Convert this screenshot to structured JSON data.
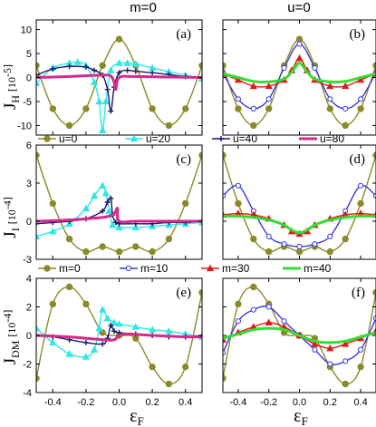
{
  "column_titles": [
    "m=0",
    "u=0"
  ],
  "x_label": {
    "main": "ε",
    "sub": "F"
  },
  "row_labels": [
    {
      "main": "J",
      "sub": "H",
      "unit": "[10"
    },
    {
      "main": "J",
      "sub": "I",
      "unit": "[10"
    },
    {
      "main": "J",
      "sub": "DM",
      "unit": "[10"
    }
  ],
  "unit_exponents": [
    "-5]",
    "-4]",
    "-4]"
  ],
  "legends": {
    "u": {
      "entries": [
        "u=0",
        "u=20",
        "u=40",
        "u=80"
      ]
    },
    "m": {
      "entries": [
        "m=0",
        "m=10",
        "m=30",
        "m=40"
      ]
    }
  },
  "chart_data": [
    {
      "type": "line",
      "panel": "(a)",
      "xlim": [
        -0.5,
        0.5
      ],
      "ylim": [
        -12,
        12
      ],
      "yticks": [
        -10,
        -5,
        0,
        5,
        10
      ],
      "xticks": [
        -0.4,
        -0.2,
        0.0,
        0.2,
        0.4
      ],
      "series": [
        {
          "name": "u=0",
          "color": "#8b8a2a",
          "marker": "circle",
          "x": [
            -0.5,
            -0.4,
            -0.3,
            -0.2,
            -0.1,
            0.0,
            0.1,
            0.2,
            0.3,
            0.4,
            0.5
          ],
          "y": [
            2.5,
            -6.5,
            -10.0,
            -6.5,
            2.5,
            8.0,
            2.5,
            -6.5,
            -10.0,
            -6.5,
            2.5
          ]
        },
        {
          "name": "u=20",
          "color": "#2ee6e6",
          "marker": "triangle",
          "x": [
            -0.5,
            -0.4,
            -0.3,
            -0.25,
            -0.2,
            -0.15,
            -0.12,
            -0.1,
            -0.08,
            -0.05,
            0.0,
            0.05,
            0.1,
            0.2,
            0.3,
            0.4,
            0.5
          ],
          "y": [
            -1.2,
            2.0,
            3.0,
            3.2,
            2.5,
            -1.0,
            -5.0,
            -11.0,
            -5.0,
            1.5,
            3.0,
            3.0,
            2.8,
            2.0,
            1.2,
            0.5,
            -0.2
          ]
        },
        {
          "name": "u=40",
          "color": "#1a1a6e",
          "marker": "plus",
          "x": [
            -0.5,
            -0.4,
            -0.3,
            -0.2,
            -0.15,
            -0.1,
            -0.07,
            -0.05,
            -0.03,
            0.0,
            0.05,
            0.1,
            0.2,
            0.3,
            0.4,
            0.5
          ],
          "y": [
            0.5,
            1.8,
            2.3,
            2.2,
            1.5,
            0.5,
            -2.5,
            -7.0,
            -2.0,
            1.0,
            1.5,
            1.3,
            1.0,
            0.6,
            0.2,
            0.0
          ]
        },
        {
          "name": "u=80",
          "color": "#d42a8a",
          "marker": "none",
          "x": [
            -0.5,
            -0.3,
            -0.1,
            -0.05,
            -0.03,
            -0.02,
            0.0,
            0.1,
            0.3,
            0.5
          ],
          "y": [
            0.0,
            0.2,
            0.5,
            0.3,
            -1.0,
            -2.5,
            0.0,
            0.2,
            0.1,
            0.0
          ]
        }
      ]
    },
    {
      "type": "line",
      "panel": "(b)",
      "xlim": [
        -0.5,
        0.5
      ],
      "ylim": [
        -12,
        12
      ],
      "xticks": [
        -0.4,
        -0.2,
        0.0,
        0.2,
        0.4
      ],
      "series": [
        {
          "name": "m=0",
          "color": "#8b8a2a",
          "marker": "circle",
          "x": [
            -0.5,
            -0.4,
            -0.3,
            -0.2,
            -0.1,
            0.0,
            0.1,
            0.2,
            0.3,
            0.4,
            0.5
          ],
          "y": [
            2.5,
            -6.5,
            -10.0,
            -6.5,
            2.5,
            8.0,
            2.5,
            -6.5,
            -10.0,
            -6.5,
            2.5
          ]
        },
        {
          "name": "m=10",
          "color": "#3a3ae0",
          "marker": "open-circle",
          "x": [
            -0.5,
            -0.4,
            -0.3,
            -0.2,
            -0.1,
            0.0,
            0.1,
            0.2,
            0.3,
            0.4,
            0.5
          ],
          "y": [
            1.0,
            -4.5,
            -6.5,
            -4.5,
            2.0,
            7.0,
            2.0,
            -4.5,
            -6.5,
            -4.5,
            1.0
          ]
        },
        {
          "name": "m=30",
          "color": "#e01a1a",
          "marker": "triangle",
          "x": [
            -0.5,
            -0.4,
            -0.3,
            -0.2,
            -0.1,
            -0.05,
            0.0,
            0.05,
            0.1,
            0.2,
            0.3,
            0.4,
            0.5
          ],
          "y": [
            0.8,
            -0.5,
            -1.8,
            -1.8,
            -0.5,
            1.5,
            4.0,
            1.5,
            -0.5,
            -1.8,
            -1.8,
            -0.5,
            0.8
          ]
        },
        {
          "name": "m=40",
          "color": "#33dd33",
          "marker": "none",
          "x": [
            -0.5,
            -0.4,
            -0.3,
            -0.2,
            -0.1,
            -0.05,
            0.0,
            0.05,
            0.1,
            0.2,
            0.3,
            0.4,
            0.5
          ],
          "y": [
            0.8,
            0.0,
            -0.8,
            -0.9,
            -0.3,
            1.2,
            3.0,
            1.2,
            -0.3,
            -0.9,
            -0.8,
            0.0,
            0.8
          ]
        }
      ]
    },
    {
      "type": "line",
      "panel": "(c)",
      "xlim": [
        -0.5,
        0.5
      ],
      "ylim": [
        -3,
        6
      ],
      "yticks": [
        -3,
        0,
        3,
        6
      ],
      "xticks": [
        -0.4,
        -0.2,
        0.0,
        0.2,
        0.4
      ],
      "series": [
        {
          "name": "u=0",
          "color": "#8b8a2a",
          "marker": "circle",
          "x": [
            -0.5,
            -0.4,
            -0.3,
            -0.2,
            -0.1,
            0.0,
            0.1,
            0.2,
            0.3,
            0.4,
            0.5
          ],
          "y": [
            5.2,
            1.4,
            -1.4,
            -2.4,
            -2.0,
            -2.4,
            -2.0,
            -2.4,
            -1.4,
            1.4,
            5.2
          ]
        },
        {
          "name": "u=20",
          "color": "#2ee6e6",
          "marker": "triangle",
          "x": [
            -0.5,
            -0.4,
            -0.3,
            -0.2,
            -0.15,
            -0.1,
            -0.08,
            -0.06,
            -0.04,
            0.0,
            0.1,
            0.2,
            0.3,
            0.4,
            0.5
          ],
          "y": [
            -1.2,
            -0.8,
            -0.2,
            1.0,
            2.0,
            2.8,
            2.2,
            0.8,
            -0.3,
            -0.5,
            -0.5,
            -0.4,
            -0.3,
            -0.2,
            -0.1
          ]
        },
        {
          "name": "u=40",
          "color": "#1a1a6e",
          "marker": "plus",
          "x": [
            -0.5,
            -0.4,
            -0.3,
            -0.2,
            -0.1,
            -0.07,
            -0.05,
            -0.04,
            -0.02,
            0.0,
            0.1,
            0.2,
            0.3,
            0.4,
            0.5
          ],
          "y": [
            -0.2,
            -0.1,
            0.0,
            0.2,
            0.8,
            1.5,
            1.8,
            0.5,
            -0.1,
            -0.2,
            -0.2,
            -0.2,
            -0.1,
            -0.1,
            0.0
          ]
        },
        {
          "name": "u=80",
          "color": "#d42a8a",
          "marker": "none",
          "x": [
            -0.5,
            -0.3,
            -0.1,
            -0.04,
            -0.02,
            -0.01,
            0.0,
            0.1,
            0.3,
            0.5
          ],
          "y": [
            0.0,
            0.1,
            0.3,
            0.5,
            0.8,
            1.0,
            0.0,
            0.0,
            0.0,
            0.0
          ]
        }
      ]
    },
    {
      "type": "line",
      "panel": "(d)",
      "xlim": [
        -0.5,
        0.5
      ],
      "ylim": [
        -3,
        6
      ],
      "xticks": [
        -0.4,
        -0.2,
        0.0,
        0.2,
        0.4
      ],
      "series": [
        {
          "name": "m=0",
          "color": "#8b8a2a",
          "marker": "circle",
          "x": [
            -0.5,
            -0.4,
            -0.3,
            -0.2,
            -0.1,
            0.0,
            0.1,
            0.2,
            0.3,
            0.4,
            0.5
          ],
          "y": [
            5.2,
            1.4,
            -1.4,
            -2.4,
            -2.0,
            -2.4,
            -2.0,
            -2.4,
            -1.4,
            1.4,
            5.2
          ]
        },
        {
          "name": "m=10",
          "color": "#3a3ae0",
          "marker": "open-circle",
          "x": [
            -0.5,
            -0.4,
            -0.3,
            -0.2,
            -0.1,
            0.0,
            0.1,
            0.2,
            0.3,
            0.4,
            0.5
          ],
          "y": [
            2.0,
            2.8,
            0.8,
            -1.2,
            -1.8,
            -2.0,
            -1.8,
            -1.2,
            0.8,
            2.8,
            2.0
          ]
        },
        {
          "name": "m=30",
          "color": "#e01a1a",
          "marker": "triangle",
          "x": [
            -0.5,
            -0.4,
            -0.3,
            -0.2,
            -0.1,
            -0.05,
            0.0,
            0.05,
            0.1,
            0.2,
            0.3,
            0.4,
            0.5
          ],
          "y": [
            0.5,
            0.6,
            0.5,
            0.2,
            -0.3,
            -0.8,
            -1.0,
            -0.8,
            -0.3,
            0.2,
            0.5,
            0.6,
            0.5
          ]
        },
        {
          "name": "m=40",
          "color": "#33dd33",
          "marker": "none",
          "x": [
            -0.5,
            -0.4,
            -0.3,
            -0.2,
            -0.1,
            -0.05,
            0.0,
            0.05,
            0.1,
            0.2,
            0.3,
            0.4,
            0.5
          ],
          "y": [
            0.4,
            0.4,
            0.3,
            0.1,
            -0.3,
            -0.7,
            -0.9,
            -0.7,
            -0.3,
            0.1,
            0.3,
            0.4,
            0.4
          ]
        }
      ]
    },
    {
      "type": "line",
      "panel": "(e)",
      "xlim": [
        -0.5,
        0.5
      ],
      "ylim": [
        -4,
        4
      ],
      "yticks": [
        -4,
        -2,
        0,
        2,
        4
      ],
      "xticks": [
        -0.4,
        -0.2,
        0.0,
        0.2,
        0.4
      ],
      "series": [
        {
          "name": "u=0",
          "color": "#8b8a2a",
          "marker": "circle",
          "x": [
            -0.5,
            -0.4,
            -0.3,
            -0.2,
            -0.1,
            0.0,
            0.1,
            0.2,
            0.3,
            0.4,
            0.5
          ],
          "y": [
            -3.0,
            2.2,
            3.4,
            2.2,
            0.2,
            0.0,
            -0.2,
            -2.2,
            -3.4,
            -2.2,
            3.0
          ]
        },
        {
          "name": "u=20",
          "color": "#2ee6e6",
          "marker": "triangle",
          "x": [
            -0.5,
            -0.4,
            -0.3,
            -0.2,
            -0.15,
            -0.12,
            -0.1,
            -0.07,
            -0.03,
            0.0,
            0.1,
            0.2,
            0.3,
            0.4,
            0.5
          ],
          "y": [
            0.5,
            -0.5,
            -1.3,
            -1.5,
            -1.0,
            0.5,
            1.8,
            1.2,
            0.9,
            0.8,
            0.6,
            0.4,
            0.3,
            0.1,
            -0.1
          ]
        },
        {
          "name": "u=40",
          "color": "#1a1a6e",
          "marker": "plus",
          "x": [
            -0.5,
            -0.4,
            -0.3,
            -0.2,
            -0.1,
            -0.07,
            -0.05,
            -0.03,
            0.0,
            0.1,
            0.2,
            0.3,
            0.4,
            0.5
          ],
          "y": [
            0.0,
            -0.1,
            -0.3,
            -0.5,
            -0.6,
            -0.2,
            0.7,
            0.3,
            0.2,
            0.1,
            0.0,
            -0.1,
            -0.1,
            0.0
          ]
        },
        {
          "name": "u=80",
          "color": "#d42a8a",
          "marker": "none",
          "x": [
            -0.5,
            -0.3,
            -0.1,
            -0.03,
            0.0,
            0.05,
            0.2,
            0.4,
            0.5
          ],
          "y": [
            0.0,
            -0.1,
            -0.3,
            -0.3,
            0.0,
            0.1,
            0.0,
            -0.1,
            -0.1
          ]
        }
      ]
    },
    {
      "type": "line",
      "panel": "(f)",
      "xlim": [
        -0.5,
        0.5
      ],
      "ylim": [
        -4,
        4
      ],
      "xticks": [
        -0.4,
        -0.2,
        0.0,
        0.2,
        0.4
      ],
      "series": [
        {
          "name": "m=0",
          "color": "#8b8a2a",
          "marker": "circle",
          "x": [
            -0.5,
            -0.4,
            -0.3,
            -0.2,
            -0.1,
            0.0,
            0.1,
            0.2,
            0.3,
            0.4,
            0.5
          ],
          "y": [
            -3.0,
            2.2,
            3.4,
            2.2,
            0.2,
            0.0,
            -0.2,
            -2.2,
            -3.4,
            -2.2,
            3.0
          ]
        },
        {
          "name": "m=10",
          "color": "#3a3ae0",
          "marker": "open-circle",
          "x": [
            -0.5,
            -0.4,
            -0.3,
            -0.2,
            -0.1,
            0.0,
            0.1,
            0.2,
            0.3,
            0.4,
            0.5
          ],
          "y": [
            -1.2,
            1.0,
            1.8,
            2.0,
            1.0,
            0.0,
            -1.0,
            -2.0,
            -1.8,
            -1.0,
            1.2
          ]
        },
        {
          "name": "m=30",
          "color": "#e01a1a",
          "marker": "triangle",
          "x": [
            -0.5,
            -0.4,
            -0.3,
            -0.2,
            -0.1,
            0.0,
            0.1,
            0.2,
            0.3,
            0.4,
            0.5
          ],
          "y": [
            -0.3,
            0.2,
            0.6,
            0.9,
            0.6,
            0.0,
            -0.6,
            -0.9,
            -0.6,
            -0.2,
            0.3
          ]
        },
        {
          "name": "m=40",
          "color": "#33dd33",
          "marker": "none",
          "x": [
            -0.5,
            -0.4,
            -0.3,
            -0.2,
            -0.1,
            0.0,
            0.1,
            0.2,
            0.3,
            0.4,
            0.5
          ],
          "y": [
            -0.2,
            0.1,
            0.4,
            0.5,
            0.4,
            0.0,
            -0.4,
            -0.5,
            -0.4,
            -0.1,
            0.2
          ]
        }
      ]
    }
  ]
}
